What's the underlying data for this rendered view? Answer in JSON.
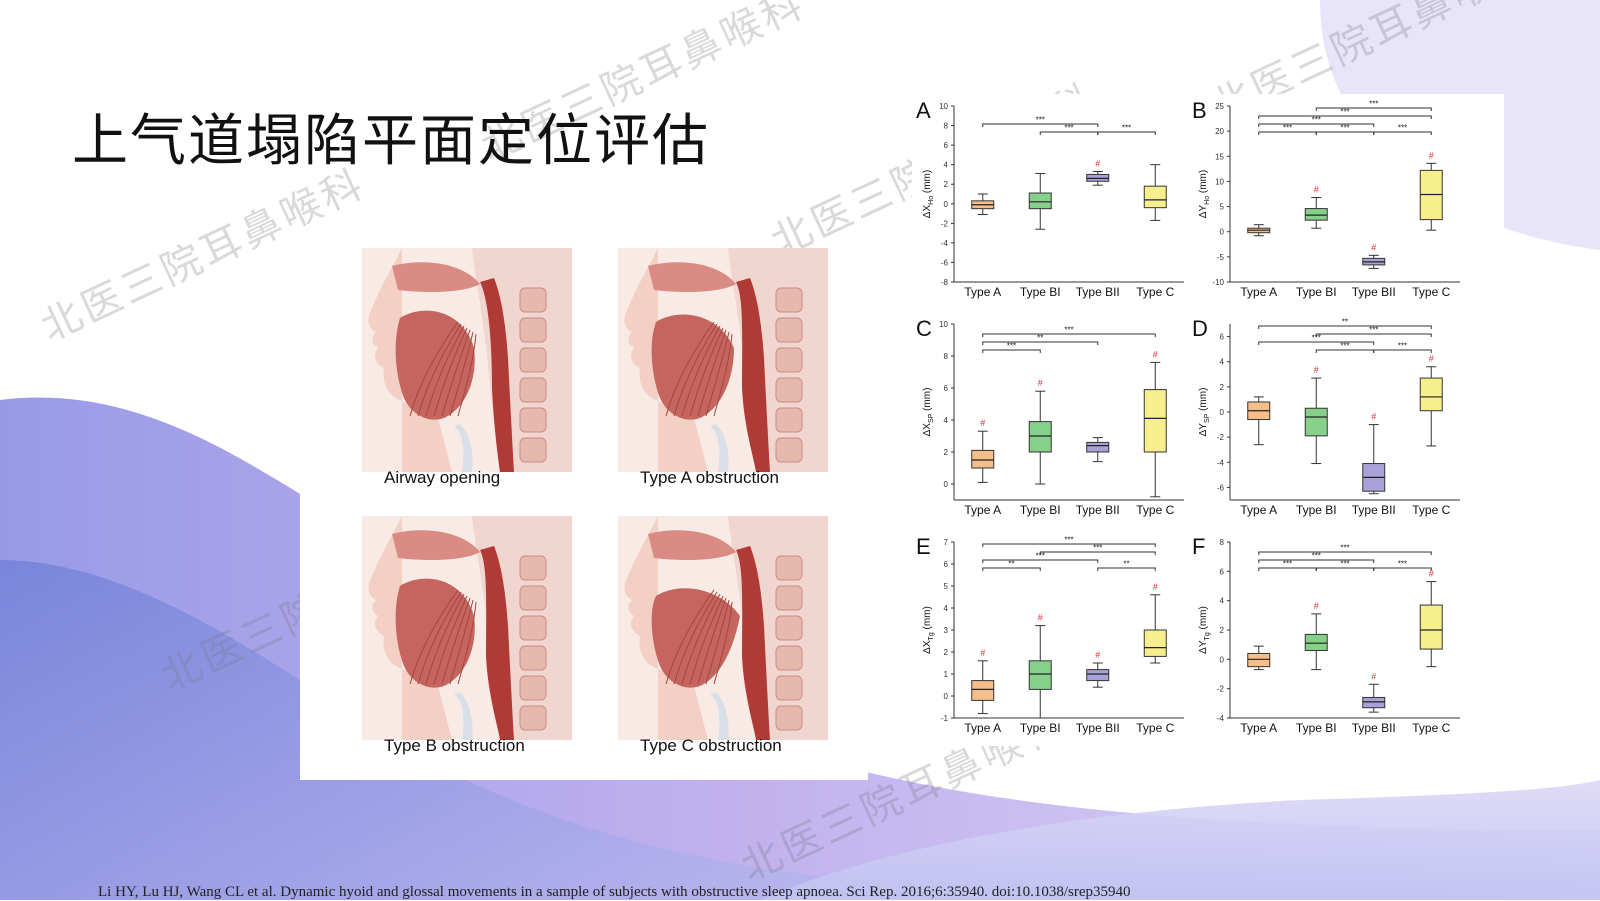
{
  "slide": {
    "title": "上气道塌陷平面定位评估",
    "citation": "Li HY, Lu HJ, Wang CL et al. Dynamic hyoid and glossal movements in a sample of subjects with obstructive sleep apnoea. Sci Rep. 2016;6:35940. doi:10.1038/srep35940",
    "watermark": "北医三院耳鼻喉科"
  },
  "anatomy": {
    "panels": [
      {
        "label": "Airway opening",
        "state": "open"
      },
      {
        "label": "Type A obstruction",
        "state": "A"
      },
      {
        "label": "Type B obstruction",
        "state": "B"
      },
      {
        "label": "Type C obstruction",
        "state": "C"
      }
    ]
  },
  "colors": {
    "typeA": "#f5be8a",
    "typeBI": "#86d08a",
    "typeBII": "#a9a2d8",
    "typeC": "#f7ef8e",
    "sigMark": "#e03030",
    "background_wave": "#8f8fe0"
  },
  "chart_data": [
    {
      "type": "box",
      "panel_letter": "A",
      "ylabel": "ΔX",
      "ylabel_sub": "Ho",
      "ylabel_unit": "(mm)",
      "ylim": [
        -8,
        10
      ],
      "yticks": [
        -8,
        -6,
        -4,
        -2,
        0,
        2,
        4,
        6,
        8,
        10
      ],
      "categories": [
        "Type A",
        "Type BI",
        "Type BII",
        "Type C"
      ],
      "boxes": [
        {
          "min": -1.1,
          "q1": -0.5,
          "median": -0.1,
          "q3": 0.3,
          "max": 1.0,
          "sig": false
        },
        {
          "min": -2.6,
          "q1": -0.5,
          "median": 0.2,
          "q3": 1.1,
          "max": 3.1,
          "sig": false
        },
        {
          "min": 1.9,
          "q1": 2.3,
          "median": 2.6,
          "q3": 3.0,
          "max": 3.3,
          "sig": true
        },
        {
          "min": -1.7,
          "q1": -0.4,
          "median": 0.4,
          "q3": 1.8,
          "max": 4.0,
          "sig": false
        }
      ],
      "brackets": [
        {
          "from": 0,
          "to": 2,
          "label": "***",
          "level": 1
        },
        {
          "from": 1,
          "to": 2,
          "label": "***",
          "level": 0
        },
        {
          "from": 2,
          "to": 3,
          "label": "***",
          "level": 0
        }
      ]
    },
    {
      "type": "box",
      "panel_letter": "B",
      "ylabel": "ΔY",
      "ylabel_sub": "Ho",
      "ylabel_unit": "(mm)",
      "ylim": [
        -10,
        25
      ],
      "yticks": [
        -10,
        -5,
        0,
        5,
        10,
        15,
        20,
        25
      ],
      "categories": [
        "Type A",
        "Type BI",
        "Type BII",
        "Type C"
      ],
      "boxes": [
        {
          "min": -0.8,
          "q1": -0.2,
          "median": 0.3,
          "q3": 0.7,
          "max": 1.4,
          "sig": false
        },
        {
          "min": 0.7,
          "q1": 2.3,
          "median": 3.3,
          "q3": 4.6,
          "max": 6.8,
          "sig": true
        },
        {
          "min": -7.3,
          "q1": -6.6,
          "median": -6.0,
          "q3": -5.3,
          "max": -4.7,
          "sig": true
        },
        {
          "min": 0.3,
          "q1": 2.4,
          "median": 7.4,
          "q3": 12.2,
          "max": 13.6,
          "sig": true
        }
      ],
      "brackets": [
        {
          "from": 0,
          "to": 1,
          "label": "***",
          "level": 0
        },
        {
          "from": 1,
          "to": 2,
          "label": "***",
          "level": 0
        },
        {
          "from": 2,
          "to": 3,
          "label": "***",
          "level": 0
        },
        {
          "from": 0,
          "to": 2,
          "label": "***",
          "level": 1
        },
        {
          "from": 0,
          "to": 3,
          "label": "***",
          "level": 2
        },
        {
          "from": 1,
          "to": 3,
          "label": "***",
          "level": 3
        }
      ]
    },
    {
      "type": "box",
      "panel_letter": "C",
      "ylabel": "ΔX",
      "ylabel_sub": "SP",
      "ylabel_unit": "(mm)",
      "ylim": [
        -1,
        10
      ],
      "yticks": [
        0,
        2,
        4,
        6,
        8,
        10
      ],
      "categories": [
        "Type A",
        "Type BI",
        "Type BII",
        "Type C"
      ],
      "boxes": [
        {
          "min": 0.1,
          "q1": 1.0,
          "median": 1.5,
          "q3": 2.1,
          "max": 3.3,
          "sig": true
        },
        {
          "min": 0.0,
          "q1": 2.0,
          "median": 3.0,
          "q3": 3.9,
          "max": 5.8,
          "sig": true
        },
        {
          "min": 1.4,
          "q1": 2.0,
          "median": 2.4,
          "q3": 2.6,
          "max": 2.9,
          "sig": false
        },
        {
          "min": -0.8,
          "q1": 2.0,
          "median": 4.1,
          "q3": 5.9,
          "max": 7.6,
          "sig": true
        }
      ],
      "brackets": [
        {
          "from": 0,
          "to": 1,
          "label": "***",
          "level": 0
        },
        {
          "from": 0,
          "to": 2,
          "label": "**",
          "level": 1
        },
        {
          "from": 0,
          "to": 3,
          "label": "***",
          "level": 2
        }
      ]
    },
    {
      "type": "box",
      "panel_letter": "D",
      "ylabel": "ΔY",
      "ylabel_sub": "SP",
      "ylabel_unit": "(mm)",
      "ylim": [
        -7,
        7
      ],
      "yticks": [
        -6,
        -4,
        -2,
        0,
        2,
        4,
        6
      ],
      "categories": [
        "Type A",
        "Type BI",
        "Type BII",
        "Type C"
      ],
      "boxes": [
        {
          "min": -2.6,
          "q1": -0.6,
          "median": 0.1,
          "q3": 0.8,
          "max": 1.2,
          "sig": false
        },
        {
          "min": -4.1,
          "q1": -1.9,
          "median": -0.4,
          "q3": 0.3,
          "max": 2.7,
          "sig": true
        },
        {
          "min": -6.5,
          "q1": -6.3,
          "median": -5.2,
          "q3": -4.1,
          "max": -1.0,
          "sig": true
        },
        {
          "min": -2.7,
          "q1": 0.1,
          "median": 1.2,
          "q3": 2.7,
          "max": 3.6,
          "sig": true
        }
      ],
      "brackets": [
        {
          "from": 1,
          "to": 2,
          "label": "***",
          "level": 0
        },
        {
          "from": 2,
          "to": 3,
          "label": "***",
          "level": 0
        },
        {
          "from": 0,
          "to": 2,
          "label": "***",
          "level": 1
        },
        {
          "from": 1,
          "to": 3,
          "label": "***",
          "level": 2
        },
        {
          "from": 0,
          "to": 3,
          "label": "**",
          "level": 3
        }
      ]
    },
    {
      "type": "box",
      "panel_letter": "E",
      "ylabel": "ΔX",
      "ylabel_sub": "Tg",
      "ylabel_unit": "(mm)",
      "ylim": [
        -1,
        7
      ],
      "yticks": [
        -1,
        0,
        1,
        2,
        3,
        4,
        5,
        6,
        7
      ],
      "categories": [
        "Type A",
        "Type BI",
        "Type BII",
        "Type C"
      ],
      "boxes": [
        {
          "min": -0.8,
          "q1": -0.2,
          "median": 0.3,
          "q3": 0.7,
          "max": 1.6,
          "sig": true
        },
        {
          "min": -1.0,
          "q1": 0.3,
          "median": 1.0,
          "q3": 1.6,
          "max": 3.2,
          "sig": true
        },
        {
          "min": 0.4,
          "q1": 0.7,
          "median": 1.0,
          "q3": 1.2,
          "max": 1.5,
          "sig": true
        },
        {
          "min": 1.5,
          "q1": 1.8,
          "median": 2.2,
          "q3": 3.0,
          "max": 4.6,
          "sig": true
        }
      ],
      "brackets": [
        {
          "from": 0,
          "to": 1,
          "label": "**",
          "level": 0
        },
        {
          "from": 2,
          "to": 3,
          "label": "**",
          "level": 0
        },
        {
          "from": 0,
          "to": 2,
          "label": "***",
          "level": 1
        },
        {
          "from": 1,
          "to": 3,
          "label": "***",
          "level": 2
        },
        {
          "from": 0,
          "to": 3,
          "label": "***",
          "level": 3
        }
      ]
    },
    {
      "type": "box",
      "panel_letter": "F",
      "ylabel": "ΔY",
      "ylabel_sub": "Tg",
      "ylabel_unit": "(mm)",
      "ylim": [
        -4,
        8
      ],
      "yticks": [
        -4,
        -2,
        0,
        2,
        4,
        6,
        8
      ],
      "categories": [
        "Type A",
        "Type BI",
        "Type BII",
        "Type C"
      ],
      "boxes": [
        {
          "min": -0.7,
          "q1": -0.5,
          "median": 0.0,
          "q3": 0.4,
          "max": 0.9,
          "sig": false
        },
        {
          "min": -0.7,
          "q1": 0.6,
          "median": 1.1,
          "q3": 1.7,
          "max": 3.1,
          "sig": true
        },
        {
          "min": -3.6,
          "q1": -3.3,
          "median": -2.9,
          "q3": -2.6,
          "max": -1.7,
          "sig": true
        },
        {
          "min": -0.5,
          "q1": 0.7,
          "median": 2.0,
          "q3": 3.7,
          "max": 5.3,
          "sig": true
        }
      ],
      "brackets": [
        {
          "from": 0,
          "to": 1,
          "label": "***",
          "level": 0
        },
        {
          "from": 1,
          "to": 2,
          "label": "***",
          "level": 0
        },
        {
          "from": 2,
          "to": 3,
          "label": "***",
          "level": 0
        },
        {
          "from": 0,
          "to": 2,
          "label": "***",
          "level": 1
        },
        {
          "from": 0,
          "to": 3,
          "label": "***",
          "level": 2
        }
      ]
    }
  ]
}
